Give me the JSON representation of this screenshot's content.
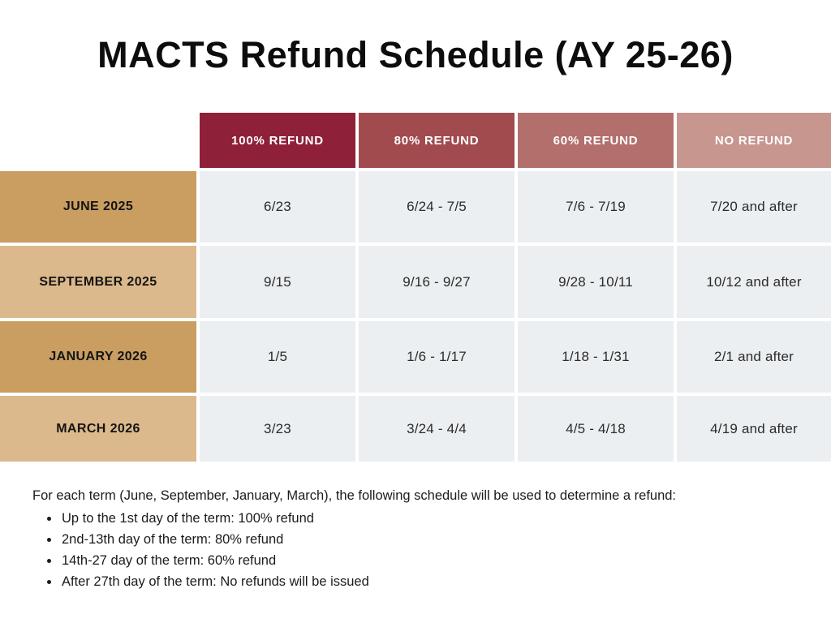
{
  "title": "MACTS Refund Schedule (AY 25-26)",
  "table": {
    "column_headers": [
      "100% REFUND",
      "80% REFUND",
      "60% REFUND",
      "NO REFUND"
    ],
    "header_colors": [
      "#8E2139",
      "#A14B4E",
      "#B26F6C",
      "#C6968F"
    ],
    "term_colors": [
      "#C99E60",
      "#DCB98C",
      "#C99E60",
      "#DCB98C"
    ],
    "data_cell_color": "#ECEFF1",
    "rows": [
      {
        "term": "JUNE 2025",
        "cells": [
          "6/23",
          "6/24 - 7/5",
          "7/6 - 7/19",
          "7/20 and after"
        ]
      },
      {
        "term": "SEPTEMBER 2025",
        "cells": [
          "9/15",
          "9/16 - 9/27",
          "9/28 - 10/11",
          "10/12 and after"
        ]
      },
      {
        "term": "JANUARY 2026",
        "cells": [
          "1/5",
          "1/6 - 1/17",
          "1/18 - 1/31",
          "2/1 and after"
        ]
      },
      {
        "term": "MARCH 2026",
        "cells": [
          "3/23",
          "3/24 - 4/4",
          "4/5 - 4/18",
          "4/19 and after"
        ]
      }
    ]
  },
  "notes": {
    "intro": "For each term (June, September, January, March), the following schedule will be used to determine a refund:",
    "bullets": [
      "Up to the 1st day of the term: 100% refund",
      "2nd-13th day of the term: 80% refund",
      "14th-27 day of the term:  60% refund",
      "After 27th day of the term: No refunds will be issued"
    ]
  }
}
